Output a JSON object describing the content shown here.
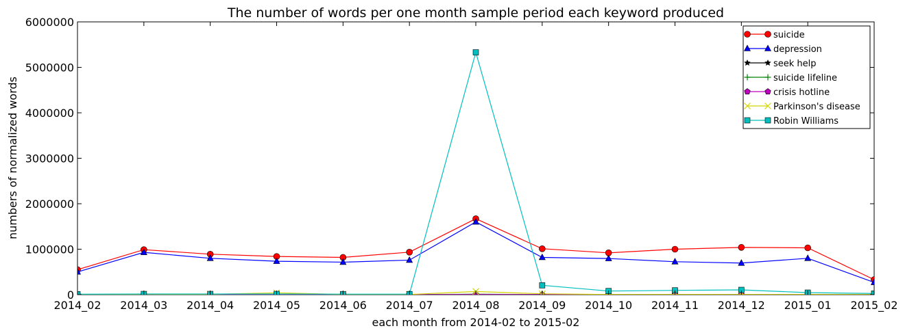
{
  "chart_data": {
    "type": "line",
    "title": "The number of words per one month sample period each keyword produced",
    "xlabel": "each month from 2014-02 to 2015-02",
    "ylabel": "numbers of normalized words",
    "ylim": [
      0,
      6000000
    ],
    "yticks": [
      "0",
      "1000000",
      "2000000",
      "3000000",
      "4000000",
      "5000000",
      "6000000"
    ],
    "yticks_values": [
      0,
      1000000,
      2000000,
      3000000,
      4000000,
      5000000,
      6000000
    ],
    "categories": [
      "2014_02",
      "2014_03",
      "2014_04",
      "2014_05",
      "2014_06",
      "2014_07",
      "2014_08",
      "2014_09",
      "2014_10",
      "2014_11",
      "2014_12",
      "2015_01",
      "2015_02"
    ],
    "legend_position": "top-right",
    "grid": false,
    "series": [
      {
        "name": "suicide",
        "color": "#ff0000",
        "marker": "circle",
        "values": [
          550000,
          990000,
          890000,
          840000,
          820000,
          935000,
          1670000,
          1010000,
          920000,
          1000000,
          1040000,
          1030000,
          330000
        ]
      },
      {
        "name": "depression",
        "color": "#0000ff",
        "marker": "triangle",
        "values": [
          500000,
          930000,
          800000,
          735000,
          715000,
          760000,
          1600000,
          820000,
          795000,
          725000,
          695000,
          800000,
          270000
        ]
      },
      {
        "name": "seek help",
        "color": "#000000",
        "marker": "star",
        "values": [
          2000,
          3000,
          3000,
          3000,
          3000,
          3000,
          8000,
          4000,
          3000,
          3000,
          3000,
          3000,
          2000
        ]
      },
      {
        "name": "suicide lifeline",
        "color": "#008000",
        "marker": "plus",
        "values": [
          1000,
          2000,
          2000,
          2000,
          2000,
          2000,
          10000,
          3000,
          2000,
          2000,
          2000,
          2000,
          1000
        ]
      },
      {
        "name": "crisis hotline",
        "color": "#bf00bf",
        "marker": "pentagon",
        "values": [
          1000,
          1000,
          1000,
          1000,
          1000,
          1000,
          5000,
          2000,
          1000,
          1000,
          1000,
          1000,
          1000
        ]
      },
      {
        "name": "Parkinson's disease",
        "color": "#d4d400",
        "marker": "x",
        "values": [
          3000,
          10000,
          8000,
          40000,
          6000,
          5000,
          70000,
          20000,
          5000,
          5000,
          5000,
          5000,
          3000
        ]
      },
      {
        "name": "Robin Williams",
        "color": "#00bfbf",
        "marker": "square",
        "values": [
          10000,
          15000,
          15000,
          15000,
          12000,
          12000,
          5330000,
          205000,
          80000,
          95000,
          105000,
          45000,
          25000
        ]
      }
    ]
  }
}
